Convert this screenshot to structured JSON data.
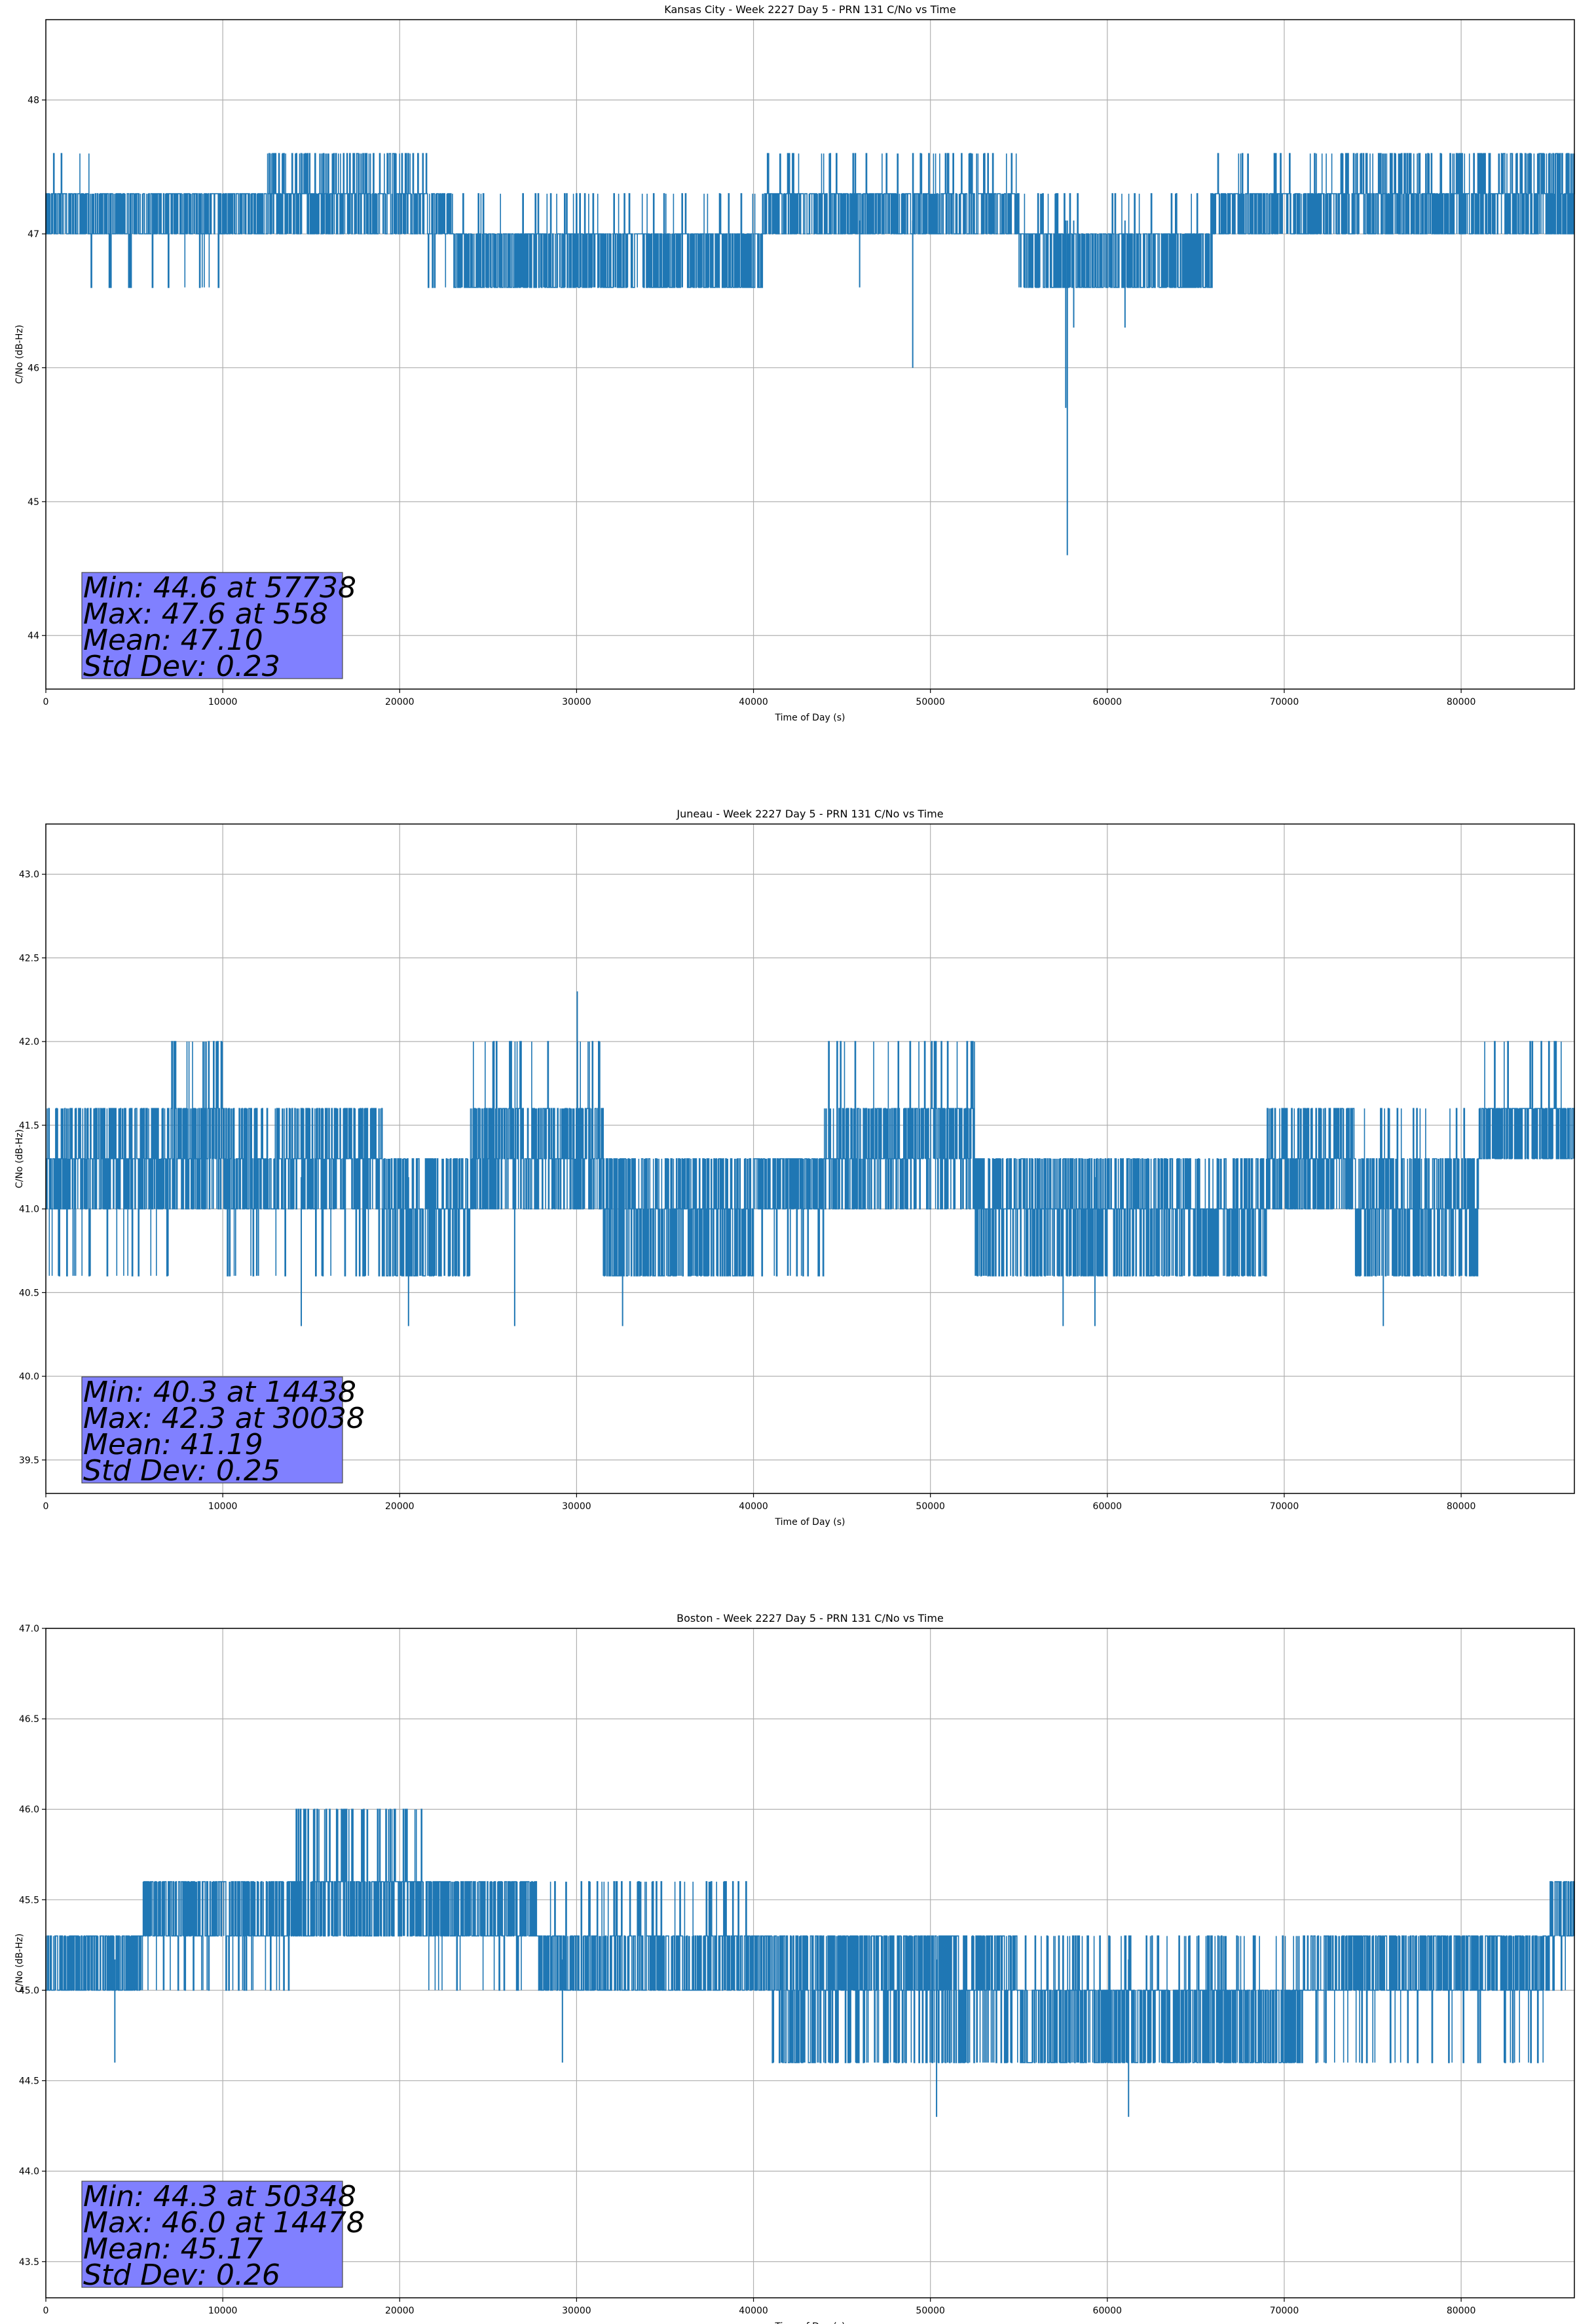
{
  "chart_data": [
    {
      "type": "line",
      "title": "Kansas City - Week 2227 Day 5 - PRN 131 C/No vs Time",
      "xlabel": "Time of Day (s)",
      "ylabel": "C/No (dB-Hz)",
      "xlim": [
        0,
        86400
      ],
      "ylim": [
        43.6,
        48.6
      ],
      "xticks": [
        0,
        10000,
        20000,
        30000,
        40000,
        50000,
        60000,
        70000,
        80000
      ],
      "yticks": [
        44,
        45,
        46,
        47,
        48
      ],
      "grid": true,
      "series_color": "#1f77b4",
      "stats_box": {
        "lines": [
          "Min: 44.6 at 57738",
          "Max: 47.6 at 558",
          "Mean: 47.10",
          "Std Dev: 0.23"
        ],
        "color": "#8080ff"
      },
      "series": [
        {
          "values_description_x": [
            0,
            558,
            2700,
            9500,
            12500,
            21500,
            22700,
            40500,
            49000,
            51500,
            55000,
            57738,
            66000,
            69000,
            73000,
            86400
          ],
          "band_levels": [
            46.6,
            47.0,
            47.3,
            47.6
          ],
          "min": 44.6,
          "max": 47.6,
          "mean": 47.1
        }
      ]
    },
    {
      "type": "line",
      "title": "Juneau - Week 2227 Day 5 - PRN 131 C/No vs Time",
      "xlabel": "Time of Day (s)",
      "ylabel": "C/No (dB-Hz)",
      "xlim": [
        0,
        86400
      ],
      "ylim": [
        39.3,
        43.3
      ],
      "xticks": [
        0,
        10000,
        20000,
        30000,
        40000,
        50000,
        60000,
        70000,
        80000
      ],
      "yticks": [
        39.5,
        40.0,
        40.5,
        41.0,
        41.5,
        42.0,
        42.5,
        43.0
      ],
      "grid": true,
      "series_color": "#1f77b4",
      "stats_box": {
        "lines": [
          "Min: 40.3 at 14438",
          "Max: 42.3 at 30038",
          "Mean: 41.19",
          "Std Dev: 0.25"
        ],
        "color": "#8080ff"
      },
      "series": [
        {
          "band_levels": [
            40.6,
            41.0,
            41.3,
            41.6,
            42.0
          ],
          "min": 40.3,
          "max": 42.3,
          "mean": 41.19
        }
      ]
    },
    {
      "type": "line",
      "title": "Boston - Week 2227 Day 5 - PRN 131 C/No vs Time",
      "xlabel": "Time of Day (s)",
      "ylabel": "C/No (dB-Hz)",
      "xlim": [
        0,
        86400
      ],
      "ylim": [
        43.3,
        47.0
      ],
      "xticks": [
        0,
        10000,
        20000,
        30000,
        40000,
        50000,
        60000,
        70000,
        80000
      ],
      "yticks": [
        43.5,
        44.0,
        44.5,
        45.0,
        45.5,
        46.0,
        46.5,
        47.0
      ],
      "grid": true,
      "series_color": "#1f77b4",
      "stats_box": {
        "lines": [
          "Min: 44.3 at 50348",
          "Max: 46.0 at 14478",
          "Mean: 45.17",
          "Std Dev: 0.26"
        ],
        "color": "#8080ff"
      },
      "series": [
        {
          "band_levels": [
            44.6,
            45.0,
            45.3,
            45.6,
            46.0
          ],
          "min": 44.3,
          "max": 46.0,
          "mean": 45.17
        }
      ]
    }
  ]
}
